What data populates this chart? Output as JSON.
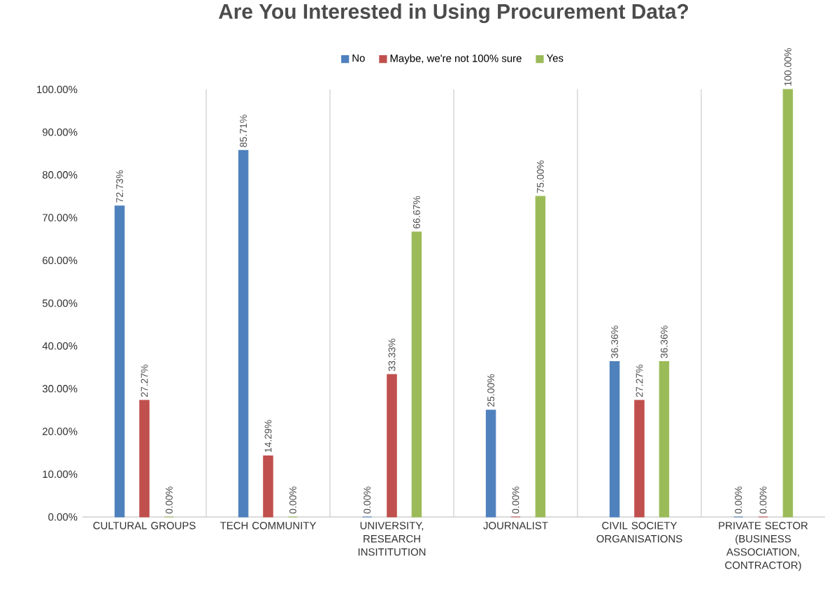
{
  "chart_data": {
    "type": "bar",
    "title": "Are You Interested in Using Procurement Data?",
    "categories": [
      "CULTURAL GROUPS",
      "TECH COMMUNITY",
      "UNIVERSITY, RESEARCH INSITITUTION",
      "JOURNALIST",
      "CIVIL SOCIETY ORGANISATIONS",
      "PRIVATE SECTOR (BUSINESS ASSOCIATION, CONTRACTOR)"
    ],
    "series": [
      {
        "name": "No",
        "color": "#4f81bd",
        "values": [
          72.73,
          85.71,
          0,
          25,
          36.36,
          0
        ],
        "value_labels": [
          "72.73%",
          "85.71%",
          "0.00%",
          "25.00%",
          "36.36%",
          "0.00%"
        ]
      },
      {
        "name": "Maybe, we're not 100% sure",
        "color": "#c0504d",
        "values": [
          27.27,
          14.29,
          33.33,
          0,
          27.27,
          0
        ],
        "value_labels": [
          "27.27%",
          "14.29%",
          "33.33%",
          "0.00%",
          "27.27%",
          "0.00%"
        ]
      },
      {
        "name": "Yes",
        "color": "#9bbb59",
        "values": [
          0,
          0,
          66.67,
          75,
          36.36,
          100
        ],
        "value_labels": [
          "0.00%",
          "0.00%",
          "66.67%",
          "75.00%",
          "36.36%",
          "100.00%"
        ]
      }
    ],
    "ylim": [
      0,
      100
    ],
    "yticks": [
      {
        "value": 0,
        "label": "0.00%"
      },
      {
        "value": 10,
        "label": "10.00%"
      },
      {
        "value": 20,
        "label": "20.00%"
      },
      {
        "value": 30,
        "label": "30.00%"
      },
      {
        "value": 40,
        "label": "40.00%"
      },
      {
        "value": 50,
        "label": "50.00%"
      },
      {
        "value": 60,
        "label": "60.00%"
      },
      {
        "value": 70,
        "label": "70.00%"
      },
      {
        "value": 80,
        "label": "80.00%"
      },
      {
        "value": 90,
        "label": "90.00%"
      },
      {
        "value": 100,
        "label": "100.00%"
      }
    ],
    "grid": "x",
    "legend": "top"
  }
}
